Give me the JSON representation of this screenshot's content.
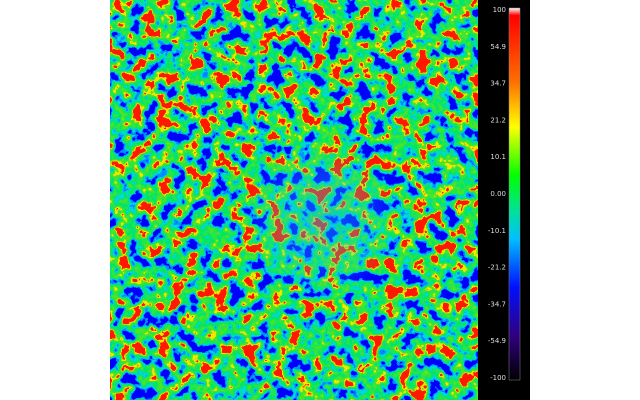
{
  "colorbar": {
    "labels": [
      "100",
      "54.9",
      "34.7",
      "21.2",
      "10.1",
      "0.00",
      "-10.1",
      "-21.2",
      "-34.7",
      "-54.9",
      "-100"
    ]
  }
}
